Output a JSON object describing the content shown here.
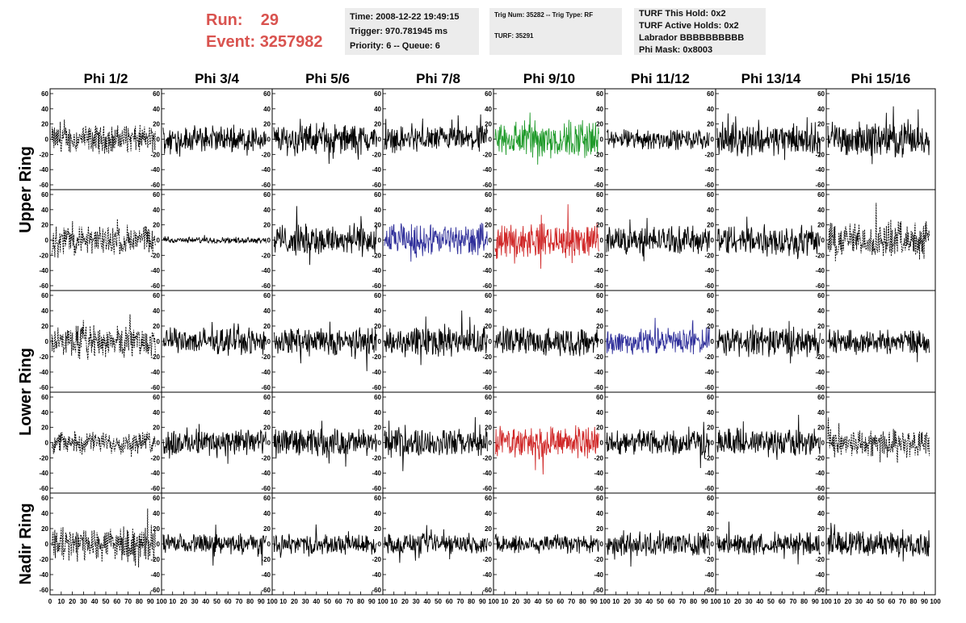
{
  "header": {
    "run_label": "Run:",
    "run_value": "29",
    "event_label": "Event:",
    "event_value": "3257982",
    "time": "Time: 2008-12-22 19:49:15",
    "trigger": "Trigger: 970.781945 ms",
    "priority": "Priority: 6 -- Queue: 6",
    "trig_num": "Trig Num: 35282 -- Trig Type: RF",
    "turf": "TURF: 35291",
    "turf_this_hold": "TURF This Hold: 0x2",
    "turf_active_holds": "TURF Active Holds: 0x2",
    "labrador": "Labrador BBBBBBBBBB",
    "phi_mask": "Phi Mask: 0x8003"
  },
  "colors": {
    "black": "#000000",
    "green": "#1f9a2a",
    "blue": "#2e2e9a",
    "red": "#d02828"
  },
  "chart_data": {
    "type": "line",
    "columns": [
      "Phi 1/2",
      "Phi 3/4",
      "Phi 5/6",
      "Phi 7/8",
      "Phi 9/10",
      "Phi 11/12",
      "Phi 13/14",
      "Phi 15/16"
    ],
    "row_labels": [
      {
        "text": "Upper Ring",
        "span": [
          0,
          1
        ]
      },
      {
        "text": "Lower Ring",
        "span": [
          2,
          3
        ]
      },
      {
        "text": "Nadir Ring",
        "span": [
          4,
          4
        ]
      }
    ],
    "ylim": [
      -60,
      60
    ],
    "yticks": [
      "-60",
      "-40",
      "-20",
      "0",
      "20",
      "40",
      "60"
    ],
    "xlim": [
      0,
      100
    ],
    "xticks": [
      "0",
      "10",
      "20",
      "30",
      "40",
      "50",
      "60",
      "70",
      "80",
      "90",
      "100"
    ],
    "panels": [
      [
        {
          "c": "black",
          "s": "dash",
          "a": 14
        },
        {
          "c": "black",
          "s": "solid",
          "a": 13
        },
        {
          "c": "black",
          "s": "solid",
          "a": 15
        },
        {
          "c": "black",
          "s": "solid",
          "a": 13
        },
        {
          "c": "green",
          "s": "solid",
          "a": 20
        },
        {
          "c": "black",
          "s": "solid",
          "a": 10
        },
        {
          "c": "black",
          "s": "solid",
          "a": 16
        },
        {
          "c": "black",
          "s": "solid",
          "a": 17
        }
      ],
      [
        {
          "c": "black",
          "s": "dash",
          "a": 15
        },
        {
          "c": "black",
          "s": "solid",
          "a": 3
        },
        {
          "c": "black",
          "s": "solid",
          "a": 16
        },
        {
          "c": "blue",
          "s": "solid",
          "a": 16
        },
        {
          "c": "red",
          "s": "solid",
          "a": 17
        },
        {
          "c": "black",
          "s": "solid",
          "a": 14
        },
        {
          "c": "black",
          "s": "solid",
          "a": 16
        },
        {
          "c": "black",
          "s": "dash",
          "a": 18
        }
      ],
      [
        {
          "c": "black",
          "s": "dash",
          "a": 16
        },
        {
          "c": "black",
          "s": "solid",
          "a": 13
        },
        {
          "c": "black",
          "s": "solid",
          "a": 14
        },
        {
          "c": "black",
          "s": "solid",
          "a": 15
        },
        {
          "c": "black",
          "s": "solid",
          "a": 14
        },
        {
          "c": "blue",
          "s": "solid",
          "a": 13
        },
        {
          "c": "black",
          "s": "solid",
          "a": 15
        },
        {
          "c": "black",
          "s": "solid",
          "a": 12
        }
      ],
      [
        {
          "c": "black",
          "s": "dash",
          "a": 11
        },
        {
          "c": "black",
          "s": "solid",
          "a": 14
        },
        {
          "c": "black",
          "s": "solid",
          "a": 14
        },
        {
          "c": "black",
          "s": "solid",
          "a": 14
        },
        {
          "c": "red",
          "s": "solid",
          "a": 16
        },
        {
          "c": "black",
          "s": "solid",
          "a": 13
        },
        {
          "c": "black",
          "s": "solid",
          "a": 14
        },
        {
          "c": "black",
          "s": "dash",
          "a": 14
        }
      ],
      [
        {
          "c": "black",
          "s": "dash",
          "a": 17
        },
        {
          "c": "black",
          "s": "solid",
          "a": 10
        },
        {
          "c": "black",
          "s": "solid",
          "a": 10
        },
        {
          "c": "black",
          "s": "solid",
          "a": 10
        },
        {
          "c": "black",
          "s": "solid",
          "a": 10
        },
        {
          "c": "black",
          "s": "solid",
          "a": 12
        },
        {
          "c": "black",
          "s": "solid",
          "a": 11
        },
        {
          "c": "black",
          "s": "solid",
          "a": 13
        }
      ]
    ]
  }
}
